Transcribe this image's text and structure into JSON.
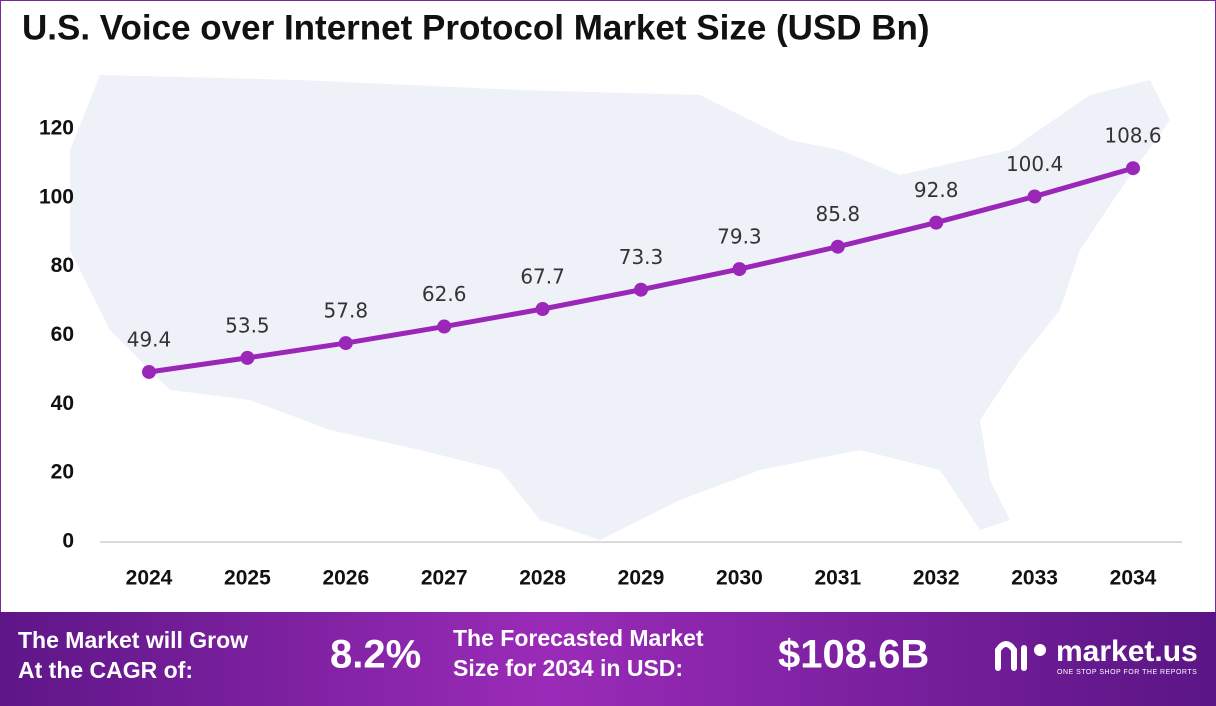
{
  "chart_data": {
    "type": "line",
    "title": "U.S. Voice over Internet Protocol Market Size (USD Bn)",
    "categories": [
      "2024",
      "2025",
      "2026",
      "2027",
      "2028",
      "2029",
      "2030",
      "2031",
      "2032",
      "2033",
      "2034"
    ],
    "values": [
      49.4,
      53.5,
      57.8,
      62.6,
      67.7,
      73.3,
      79.3,
      85.8,
      92.8,
      100.4,
      108.6
    ],
    "color": "#9b27b8",
    "ylim": [
      0,
      120
    ],
    "yticks": [
      0,
      20,
      40,
      60,
      80,
      100,
      120
    ],
    "grid": false
  },
  "footer": {
    "cagr_text": [
      "The Market will Grow",
      "At the CAGR of:"
    ],
    "cagr": "8.2%",
    "forecast_text": [
      "The Forecasted Market",
      "Size for 2034 in USD:"
    ],
    "forecast": "$108.6B",
    "logo": "market.us",
    "tagline": "ONE STOP SHOP FOR THE REPORTS"
  }
}
